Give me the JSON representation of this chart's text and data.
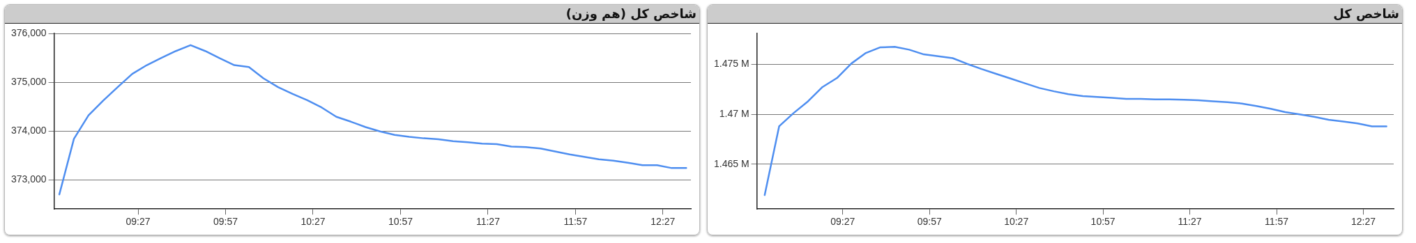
{
  "chart_data": [
    {
      "type": "line",
      "title": "شاخص کل (هم وزن)",
      "grid": "y",
      "legend": false,
      "marker": "none",
      "line_style": "solid",
      "x": [
        9,
        9.0833,
        9.1667,
        9.25,
        9.3333,
        9.4167,
        9.5,
        9.5833,
        9.6667,
        9.75,
        9.8333,
        9.9167,
        10,
        10.0833,
        10.1667,
        10.25,
        10.3333,
        10.4167,
        10.5,
        10.5833,
        10.6667,
        10.75,
        10.8333,
        10.9167,
        11,
        11.0833,
        11.1667,
        11.25,
        11.3333,
        11.4167,
        11.5,
        11.5833,
        11.6667,
        11.75,
        11.8333,
        11.9167,
        12,
        12.0833,
        12.1667,
        12.25,
        12.3333,
        12.4167,
        12.5,
        12.5833
      ],
      "xlim": [
        8.97,
        12.61
      ],
      "xticks": [
        {
          "value": 9.45,
          "label": "09:27"
        },
        {
          "value": 9.95,
          "label": "09:57"
        },
        {
          "value": 10.45,
          "label": "10:27"
        },
        {
          "value": 10.95,
          "label": "10:57"
        },
        {
          "value": 11.45,
          "label": "11:27"
        },
        {
          "value": 11.95,
          "label": "11:57"
        },
        {
          "value": 12.45,
          "label": "12:27"
        }
      ],
      "ylim": [
        372400,
        376000
      ],
      "yticks": [
        {
          "value": 373000,
          "label": "373,000"
        },
        {
          "value": 374000,
          "label": "374,000"
        },
        {
          "value": 375000,
          "label": "375,000"
        },
        {
          "value": 376000,
          "label": "376,000"
        }
      ],
      "series": [
        {
          "color": "#4e8ef0",
          "values": [
            372700,
            373840,
            374320,
            374620,
            374900,
            375170,
            375350,
            375500,
            375640,
            375760,
            375640,
            375490,
            375350,
            375310,
            375080,
            374900,
            374760,
            374630,
            374480,
            374290,
            374190,
            374080,
            373990,
            373920,
            373880,
            373850,
            373830,
            373790,
            373770,
            373740,
            373730,
            373680,
            373670,
            373640,
            373580,
            373520,
            373470,
            373420,
            373390,
            373350,
            373300,
            373300,
            373240,
            373240
          ]
        }
      ]
    },
    {
      "type": "line",
      "title": "شاخص کل",
      "grid": "y",
      "legend": false,
      "marker": "none",
      "line_style": "solid",
      "x": [
        9,
        9.0833,
        9.1667,
        9.25,
        9.3333,
        9.4167,
        9.5,
        9.5833,
        9.6667,
        9.75,
        9.8333,
        9.9167,
        10,
        10.0833,
        10.1667,
        10.25,
        10.3333,
        10.4167,
        10.5,
        10.5833,
        10.6667,
        10.75,
        10.8333,
        10.9167,
        11,
        11.0833,
        11.1667,
        11.25,
        11.3333,
        11.4167,
        11.5,
        11.5833,
        11.6667,
        11.75,
        11.8333,
        11.9167,
        12,
        12.0833,
        12.1667,
        12.25,
        12.3333,
        12.4167,
        12.5,
        12.5833
      ],
      "xlim": [
        8.955,
        12.625
      ],
      "xticks": [
        {
          "value": 9.45,
          "label": "09:27"
        },
        {
          "value": 9.95,
          "label": "09:57"
        },
        {
          "value": 10.45,
          "label": "10:27"
        },
        {
          "value": 10.95,
          "label": "10:57"
        },
        {
          "value": 11.45,
          "label": "11:27"
        },
        {
          "value": 11.95,
          "label": "11:57"
        },
        {
          "value": 12.45,
          "label": "12:27"
        }
      ],
      "ylim": [
        1460500,
        1478100
      ],
      "yticks": [
        {
          "value": 1465000,
          "label": "1.465 M"
        },
        {
          "value": 1470000,
          "label": "1.47 M"
        },
        {
          "value": 1475000,
          "label": "1.475 M"
        }
      ],
      "series": [
        {
          "color": "#4e8ef0",
          "values": [
            1461900,
            1468790,
            1470120,
            1471300,
            1472730,
            1473630,
            1475090,
            1476140,
            1476710,
            1476750,
            1476470,
            1476000,
            1475810,
            1475620,
            1475050,
            1474530,
            1474050,
            1473580,
            1473100,
            1472630,
            1472300,
            1472010,
            1471820,
            1471730,
            1471640,
            1471540,
            1471540,
            1471490,
            1471490,
            1471450,
            1471400,
            1471300,
            1471210,
            1471070,
            1470830,
            1470550,
            1470210,
            1469980,
            1469740,
            1469450,
            1469270,
            1469080,
            1468790,
            1468790
          ]
        }
      ]
    }
  ]
}
